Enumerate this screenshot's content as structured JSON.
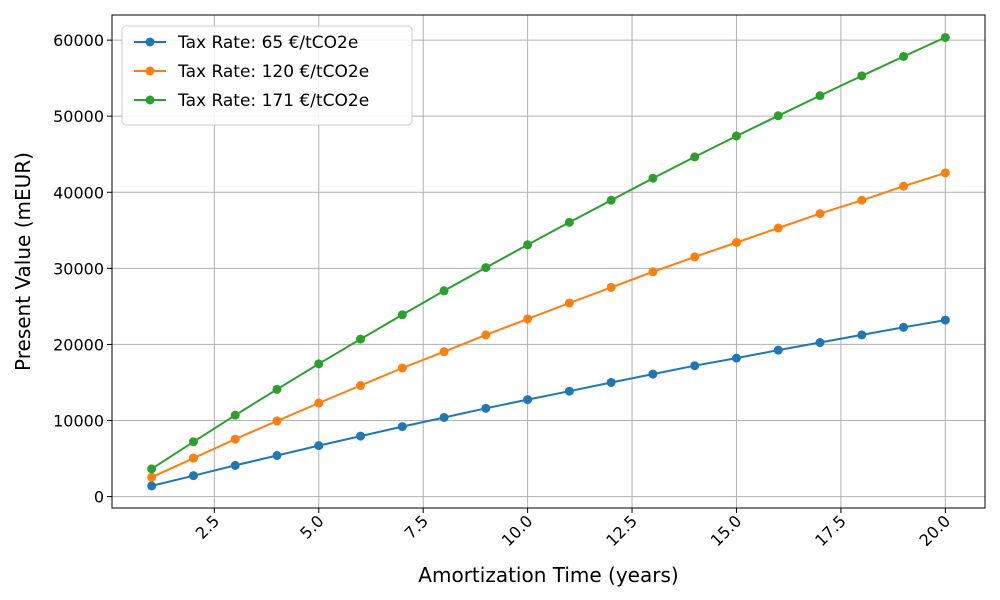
{
  "chart_data": {
    "type": "line",
    "title": "",
    "xlabel": "Amortization Time (years)",
    "ylabel": "Present Value (mEUR)",
    "xlim": [
      0.05,
      20.95
    ],
    "ylim": [
      -1500,
      63300
    ],
    "x_ticks": [
      2.5,
      5.0,
      7.5,
      10.0,
      12.5,
      15.0,
      17.5,
      20.0
    ],
    "x_tick_labels": [
      "2.5",
      "5.0",
      "7.5",
      "10.0",
      "12.5",
      "15.0",
      "17.5",
      "20.0"
    ],
    "y_ticks": [
      0,
      10000,
      20000,
      30000,
      40000,
      50000,
      60000
    ],
    "y_tick_labels": [
      "0",
      "10000",
      "20000",
      "30000",
      "40000",
      "50000",
      "60000"
    ],
    "grid": true,
    "legend_position": "upper-left",
    "x": [
      1,
      2,
      3,
      4,
      5,
      6,
      7,
      8,
      9,
      10,
      11,
      12,
      13,
      14,
      15,
      16,
      17,
      18,
      19,
      20
    ],
    "series": [
      {
        "name": "Tax Rate: 65 €/tCO2e",
        "color": "#1f77b4",
        "values": [
          1400,
          2750,
          4100,
          5400,
          6700,
          7950,
          9200,
          10400,
          11600,
          12750,
          13850,
          15000,
          16100,
          17200,
          18200,
          19250,
          20250,
          21250,
          22250,
          23200
        ]
      },
      {
        "name": "Tax Rate: 120 €/tCO2e",
        "color": "#ff7f0e",
        "values": [
          2550,
          5050,
          7550,
          9950,
          12300,
          14600,
          16900,
          19050,
          21250,
          23350,
          25450,
          27500,
          29550,
          31500,
          33400,
          35300,
          37200,
          38950,
          40800,
          42550
        ]
      },
      {
        "name": "Tax Rate: 171 €/tCO2e",
        "color": "#2ca02c",
        "values": [
          3650,
          7200,
          10700,
          14100,
          17450,
          20700,
          23900,
          27050,
          30100,
          33100,
          36050,
          38950,
          41850,
          44650,
          47400,
          50050,
          52700,
          55300,
          57850,
          60350
        ]
      }
    ]
  }
}
